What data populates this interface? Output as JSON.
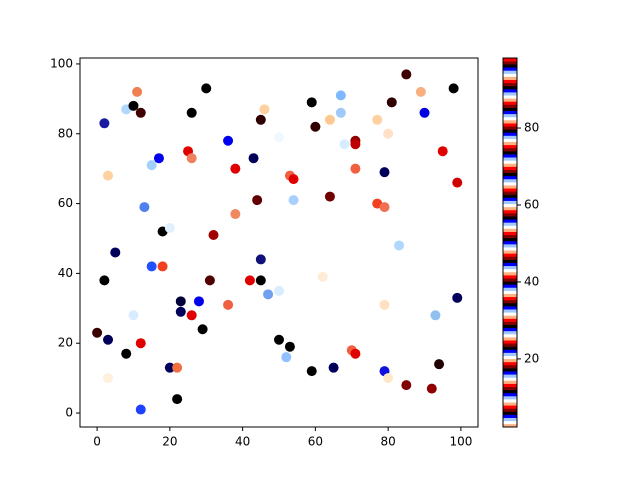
{
  "chart_data": {
    "type": "scatter",
    "x": [
      0,
      2,
      3,
      2,
      3,
      3,
      5,
      8,
      8,
      10,
      11,
      12,
      10,
      12,
      12,
      13,
      15,
      17,
      15,
      18,
      18,
      20,
      20,
      22,
      22,
      23,
      23,
      25,
      26,
      26,
      26,
      28,
      29,
      30,
      31,
      32,
      36,
      36,
      38,
      38,
      42,
      43,
      44,
      45,
      46,
      45,
      45,
      47,
      50,
      50,
      50,
      52,
      53,
      53,
      54,
      54,
      59,
      59,
      60,
      62,
      64,
      64,
      65,
      67,
      67,
      68,
      70,
      71,
      71,
      71,
      71,
      77,
      77,
      79,
      79,
      79,
      80,
      79,
      80,
      81,
      83,
      85,
      85,
      89,
      90,
      92,
      93,
      94,
      95,
      98,
      99,
      99
    ],
    "y": [
      23,
      83,
      68,
      38,
      21,
      10,
      46,
      17,
      87,
      88,
      92,
      86,
      28,
      20,
      1,
      59,
      71,
      73,
      42,
      42,
      52,
      53,
      13,
      13,
      4,
      32,
      29,
      75,
      73,
      86,
      28,
      32,
      24,
      93,
      38,
      51,
      78,
      31,
      70,
      57,
      38,
      73,
      61,
      84,
      87,
      44,
      38,
      34,
      79,
      35,
      21,
      16,
      19,
      68,
      67,
      61,
      89,
      12,
      82,
      39,
      84,
      62,
      13,
      91,
      86,
      77,
      18,
      17,
      78,
      77,
      70,
      84,
      60,
      59,
      69,
      31,
      80,
      12,
      10,
      89,
      48,
      97,
      8,
      92,
      86,
      7,
      28,
      14,
      75,
      93,
      66,
      33
    ],
    "colors": [
      "#3a0000",
      "#1a1aa0",
      "#ffd0a0",
      "#000000",
      "#00005a",
      "#fff0dd",
      "#00005a",
      "#000000",
      "#b0d8ff",
      "#000000",
      "#f08050",
      "#400000",
      "#d8ecff",
      "#e00000",
      "#2040ff",
      "#5080ee",
      "#a0d0ff",
      "#0000ee",
      "#2050ff",
      "#f04020",
      "#000000",
      "#e0f0ff",
      "#00005a",
      "#f07040",
      "#000000",
      "#00003a",
      "#00005a",
      "#e00000",
      "#f08060",
      "#000000",
      "#e00000",
      "#0000ee",
      "#000000",
      "#000000",
      "#500000",
      "#a00000",
      "#0000ee",
      "#f06040",
      "#e00000",
      "#f08860",
      "#e00000",
      "#00005a",
      "#600000",
      "#300000",
      "#ffd0a0",
      "#10107a",
      "#000000",
      "#70a0f0",
      "#f0f8ff",
      "#d8ecff",
      "#000000",
      "#90c0ff",
      "#000000",
      "#f06040",
      "#e00000",
      "#a8d0ff",
      "#000000",
      "#000000",
      "#300000",
      "#ffecd8",
      "#ffc890",
      "#700000",
      "#00005a",
      "#80b8ff",
      "#a0c8f8",
      "#d8ecff",
      "#f06040",
      "#e00000",
      "#900000",
      "#c00000",
      "#f06040",
      "#ffd0a0",
      "#f04020",
      "#f07050",
      "#00005a",
      "#ffe0c0",
      "#ffe0c8",
      "#1010e0",
      "#ffe8c8",
      "#300000",
      "#b0d8ff",
      "#400000",
      "#800000",
      "#f8b080",
      "#0000e0",
      "#900000",
      "#90c0f0",
      "#200000",
      "#e00000",
      "#000000",
      "#d00000",
      "#00005a"
    ],
    "xlim": [
      -4.7,
      104.7
    ],
    "ylim": [
      -4,
      101.7
    ],
    "xticks": [
      0,
      20,
      40,
      60,
      80,
      100
    ],
    "yticks": [
      0,
      20,
      40,
      60,
      80,
      100
    ],
    "colorbar": {
      "lim": [
        2.3,
        98.2
      ],
      "ticks": [
        20,
        40,
        60,
        80
      ],
      "cycles": 17,
      "cycle_colors": [
        "#ffb080",
        "#ffffff",
        "#a0c8ff",
        "#0000ff",
        "#000000",
        "#800000",
        "#ff0000"
      ]
    }
  }
}
